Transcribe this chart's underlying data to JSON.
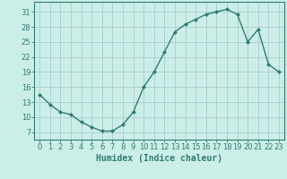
{
  "x": [
    0,
    1,
    2,
    3,
    4,
    5,
    6,
    7,
    8,
    9,
    10,
    11,
    12,
    13,
    14,
    15,
    16,
    17,
    18,
    19,
    20,
    21,
    22,
    23
  ],
  "y": [
    14.5,
    12.5,
    11.0,
    10.5,
    9.0,
    8.0,
    7.2,
    7.2,
    8.5,
    11.0,
    16.0,
    19.0,
    23.0,
    27.0,
    28.5,
    29.5,
    30.5,
    31.0,
    31.5,
    30.5,
    25.0,
    27.5,
    20.5,
    19.0
  ],
  "line_color": "#2e7d6e",
  "marker": "D",
  "markersize": 2,
  "linewidth": 1.0,
  "bg_color": "#cceee8",
  "grid_color": "#aacccc",
  "xlabel": "Humidex (Indice chaleur)",
  "xlabel_fontsize": 7,
  "xtick_labels": [
    "0",
    "1",
    "2",
    "3",
    "4",
    "5",
    "6",
    "7",
    "8",
    "9",
    "10",
    "11",
    "12",
    "13",
    "14",
    "15",
    "16",
    "17",
    "18",
    "19",
    "20",
    "21",
    "22",
    "23"
  ],
  "yticks": [
    7,
    10,
    13,
    16,
    19,
    22,
    25,
    28,
    31
  ],
  "ylim": [
    5.5,
    33
  ],
  "xlim": [
    -0.5,
    23.5
  ],
  "tick_fontsize": 6,
  "title": ""
}
